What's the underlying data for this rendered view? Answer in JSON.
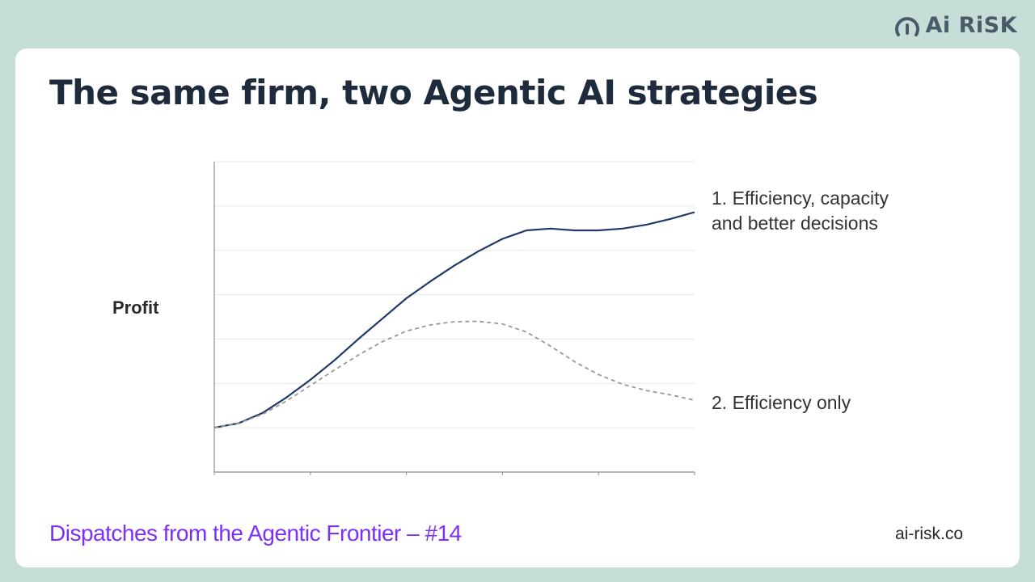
{
  "brand": {
    "logo_text": "Ai RiSK",
    "logo_icon": "gauge-icon"
  },
  "title": "The same firm, two Agentic AI strategies",
  "chart_data": {
    "type": "line",
    "ylabel": "Profit",
    "xlim": [
      0,
      20
    ],
    "ylim": [
      0,
      7
    ],
    "x_ticks": [
      0,
      4,
      8,
      12,
      16,
      20
    ],
    "grid": "horizontal",
    "series": [
      {
        "name": "1. Efficiency, capacity and better decisions",
        "name_lines": [
          "1. Efficiency, capacity",
          "and better decisions"
        ],
        "style": "solid",
        "color": "#1f3a68",
        "x": [
          0,
          1,
          2,
          3,
          4,
          5,
          6,
          7,
          8,
          9,
          10,
          11,
          12,
          13,
          14,
          15,
          16,
          17,
          18,
          19,
          20
        ],
        "y": [
          1.0,
          1.1,
          1.33,
          1.68,
          2.08,
          2.52,
          3.0,
          3.46,
          3.92,
          4.3,
          4.66,
          4.98,
          5.26,
          5.45,
          5.49,
          5.45,
          5.45,
          5.49,
          5.58,
          5.71,
          5.86
        ]
      },
      {
        "name": "2. Efficiency only",
        "name_lines": [
          "2. Efficiency only"
        ],
        "style": "dashed",
        "color": "#999999",
        "x": [
          0,
          1,
          2,
          3,
          4,
          5,
          6,
          7,
          8,
          9,
          10,
          11,
          12,
          13,
          14,
          15,
          16,
          17,
          18,
          19,
          20
        ],
        "y": [
          1.0,
          1.1,
          1.3,
          1.6,
          1.95,
          2.3,
          2.64,
          2.94,
          3.18,
          3.32,
          3.39,
          3.4,
          3.34,
          3.16,
          2.84,
          2.49,
          2.2,
          1.98,
          1.84,
          1.74,
          1.62
        ]
      }
    ]
  },
  "footer": {
    "series_label": "Dispatches from the Agentic Frontier – #14",
    "site": "ai-risk.co"
  }
}
